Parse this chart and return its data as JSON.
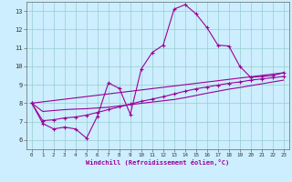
{
  "bg_color": "#cceeff",
  "grid_color": "#99cccc",
  "line_color": "#990099",
  "xlim": [
    -0.5,
    23.5
  ],
  "ylim": [
    5.5,
    13.5
  ],
  "xlabel": "Windchill (Refroidissement éolien,°C)",
  "yticks": [
    6,
    7,
    8,
    9,
    10,
    11,
    12,
    13
  ],
  "xticks": [
    0,
    1,
    2,
    3,
    4,
    5,
    6,
    7,
    8,
    9,
    10,
    11,
    12,
    13,
    14,
    15,
    16,
    17,
    18,
    19,
    20,
    21,
    22,
    23
  ],
  "series1_x": [
    0,
    1,
    2,
    3,
    4,
    5,
    6,
    7,
    8,
    9,
    10,
    11,
    12,
    13,
    14,
    15,
    16,
    17,
    18,
    19,
    20,
    21,
    22,
    23
  ],
  "series1_y": [
    8.0,
    6.9,
    6.6,
    6.7,
    6.6,
    6.1,
    7.3,
    9.1,
    8.8,
    7.4,
    9.85,
    10.75,
    11.15,
    13.1,
    13.35,
    12.85,
    12.1,
    11.15,
    11.1,
    10.0,
    9.4,
    9.45,
    9.5,
    9.65
  ],
  "series2_x": [
    0,
    1,
    2,
    3,
    4,
    5,
    6,
    7,
    8,
    9,
    10,
    11,
    12,
    13,
    14,
    15,
    16,
    17,
    18,
    19,
    20,
    21,
    22,
    23
  ],
  "series2_y": [
    8.0,
    7.05,
    7.1,
    7.2,
    7.25,
    7.35,
    7.5,
    7.65,
    7.8,
    7.95,
    8.1,
    8.22,
    8.35,
    8.5,
    8.65,
    8.78,
    8.88,
    8.98,
    9.08,
    9.15,
    9.25,
    9.32,
    9.38,
    9.45
  ],
  "series3_x": [
    0,
    1,
    2,
    3,
    4,
    5,
    6,
    7,
    8,
    9,
    10,
    11,
    12,
    13,
    14,
    15,
    16,
    17,
    18,
    19,
    20,
    21,
    22,
    23
  ],
  "series3_y": [
    8.0,
    7.55,
    7.6,
    7.65,
    7.68,
    7.7,
    7.74,
    7.78,
    7.85,
    7.92,
    7.99,
    8.06,
    8.13,
    8.2,
    8.3,
    8.42,
    8.54,
    8.65,
    8.76,
    8.85,
    8.95,
    9.05,
    9.15,
    9.25
  ],
  "series4_x": [
    0,
    23
  ],
  "series4_y": [
    8.0,
    9.65
  ]
}
